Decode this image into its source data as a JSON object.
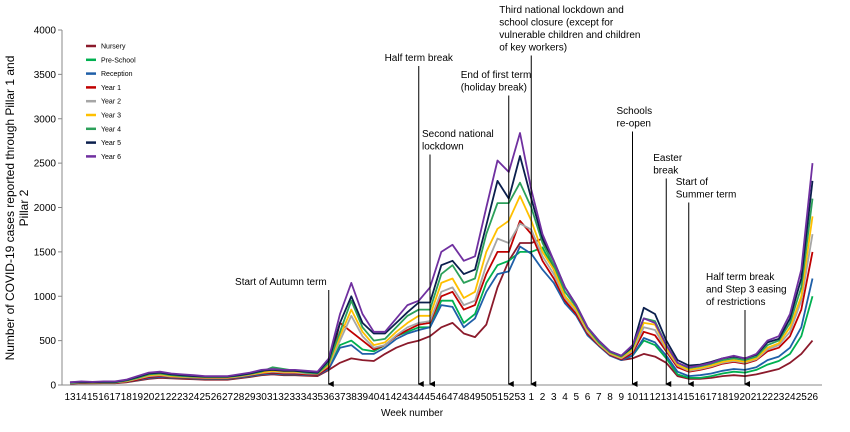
{
  "chart_data": {
    "type": "line",
    "ylabel": [
      "Number of COVID-19 cases reported  through Pillar 1 and",
      "Pillar 2"
    ],
    "xlabel": "Week number",
    "categories": [
      "13",
      "14",
      "15",
      "16",
      "17",
      "18",
      "19",
      "20",
      "21",
      "22",
      "23",
      "24",
      "25",
      "26",
      "27",
      "28",
      "29",
      "30",
      "31",
      "32",
      "33",
      "34",
      "35",
      "36",
      "37",
      "38",
      "39",
      "40",
      "41",
      "42",
      "43",
      "44",
      "45",
      "46",
      "47",
      "48",
      "49",
      "50",
      "51",
      "52",
      "53",
      "1",
      "2",
      "3",
      "4",
      "5",
      "6",
      "7",
      "8",
      "9",
      "10",
      "11",
      "12",
      "13",
      "14",
      "15",
      "16",
      "17",
      "18",
      "19",
      "20",
      "21",
      "22",
      "23",
      "24",
      "25",
      "26"
    ],
    "ylim": [
      0,
      4000
    ],
    "yticks": [
      0,
      500,
      1000,
      1500,
      2000,
      2500,
      3000,
      3500,
      4000
    ],
    "series": [
      {
        "name": "Nursery",
        "color": "#8b1a2b",
        "values": [
          15,
          20,
          18,
          20,
          20,
          30,
          50,
          70,
          80,
          75,
          70,
          65,
          60,
          60,
          60,
          75,
          90,
          110,
          120,
          110,
          110,
          105,
          100,
          170,
          250,
          300,
          280,
          270,
          350,
          420,
          470,
          500,
          550,
          650,
          700,
          580,
          540,
          680,
          1100,
          1400,
          1600,
          1600,
          1650,
          1300,
          1000,
          850,
          600,
          450,
          340,
          280,
          300,
          350,
          320,
          250,
          100,
          70,
          70,
          80,
          100,
          110,
          100,
          120,
          150,
          180,
          250,
          350,
          500
        ]
      },
      {
        "name": "Pre-School",
        "color": "#00b050",
        "values": [
          20,
          25,
          22,
          25,
          25,
          35,
          55,
          80,
          90,
          85,
          80,
          75,
          70,
          70,
          70,
          85,
          100,
          120,
          130,
          120,
          120,
          115,
          110,
          200,
          450,
          500,
          400,
          380,
          450,
          550,
          600,
          650,
          650,
          950,
          950,
          700,
          800,
          1150,
          1350,
          1400,
          1500,
          1500,
          1550,
          1300,
          1000,
          850,
          620,
          470,
          350,
          300,
          330,
          500,
          450,
          300,
          120,
          80,
          80,
          100,
          130,
          150,
          140,
          170,
          230,
          270,
          350,
          550,
          1000
        ]
      },
      {
        "name": "Reception",
        "color": "#1f5fa8",
        "values": [
          20,
          25,
          22,
          25,
          25,
          35,
          55,
          80,
          90,
          85,
          80,
          75,
          70,
          70,
          70,
          85,
          100,
          120,
          130,
          120,
          120,
          115,
          110,
          180,
          420,
          450,
          350,
          350,
          420,
          520,
          580,
          620,
          650,
          900,
          880,
          650,
          750,
          1050,
          1250,
          1280,
          1560,
          1480,
          1300,
          1150,
          920,
          780,
          560,
          440,
          330,
          280,
          330,
          530,
          480,
          330,
          150,
          100,
          110,
          130,
          160,
          180,
          170,
          200,
          280,
          320,
          420,
          650,
          1200
        ]
      },
      {
        "name": "Year 1",
        "color": "#c00000",
        "values": [
          20,
          25,
          22,
          25,
          25,
          35,
          60,
          90,
          100,
          90,
          85,
          80,
          75,
          75,
          75,
          90,
          110,
          130,
          140,
          130,
          130,
          120,
          115,
          200,
          700,
          600,
          500,
          400,
          450,
          550,
          620,
          680,
          700,
          1000,
          1050,
          850,
          900,
          1250,
          1500,
          1500,
          1850,
          1700,
          1400,
          1200,
          950,
          800,
          580,
          450,
          340,
          290,
          360,
          600,
          560,
          380,
          200,
          150,
          170,
          200,
          240,
          260,
          240,
          280,
          380,
          420,
          550,
          850,
          1500
        ]
      },
      {
        "name": "Year 2",
        "color": "#a6a6a6",
        "values": [
          20,
          28,
          25,
          28,
          28,
          40,
          70,
          100,
          110,
          95,
          90,
          85,
          80,
          80,
          80,
          95,
          115,
          135,
          150,
          140,
          140,
          130,
          125,
          220,
          500,
          780,
          550,
          420,
          450,
          560,
          650,
          700,
          720,
          1050,
          1100,
          900,
          950,
          1350,
          1650,
          1600,
          1820,
          1750,
          1450,
          1250,
          980,
          830,
          600,
          460,
          350,
          300,
          380,
          650,
          620,
          400,
          220,
          160,
          180,
          210,
          250,
          270,
          250,
          290,
          400,
          450,
          600,
          950,
          1700
        ]
      },
      {
        "name": "Year 3",
        "color": "#ffc000",
        "values": [
          25,
          30,
          25,
          30,
          30,
          45,
          75,
          110,
          120,
          100,
          95,
          90,
          85,
          85,
          85,
          100,
          120,
          140,
          160,
          150,
          150,
          140,
          130,
          230,
          550,
          850,
          600,
          450,
          480,
          600,
          700,
          780,
          780,
          1150,
          1200,
          980,
          1050,
          1500,
          1760,
          1850,
          2130,
          1850,
          1500,
          1300,
          1000,
          850,
          620,
          470,
          360,
          310,
          400,
          700,
          680,
          420,
          230,
          170,
          190,
          220,
          260,
          280,
          260,
          300,
          420,
          470,
          650,
          1000,
          1900
        ]
      },
      {
        "name": "Year 4",
        "color": "#2ca05a",
        "values": [
          25,
          30,
          28,
          30,
          30,
          50,
          80,
          120,
          130,
          110,
          100,
          95,
          90,
          90,
          90,
          105,
          125,
          150,
          200,
          180,
          160,
          140,
          130,
          250,
          600,
          950,
          650,
          500,
          520,
          650,
          780,
          850,
          850,
          1250,
          1350,
          1150,
          1200,
          1700,
          2050,
          2050,
          2280,
          2000,
          1600,
          1350,
          1050,
          880,
          640,
          480,
          370,
          320,
          420,
          750,
          720,
          450,
          250,
          190,
          210,
          240,
          280,
          300,
          280,
          320,
          450,
          500,
          700,
          1100,
          2100
        ]
      },
      {
        "name": "Year 5",
        "color": "#0b1f4d",
        "values": [
          30,
          35,
          30,
          35,
          35,
          55,
          90,
          130,
          140,
          120,
          110,
          100,
          95,
          95,
          95,
          110,
          130,
          160,
          170,
          160,
          160,
          150,
          140,
          280,
          700,
          1000,
          700,
          580,
          580,
          700,
          820,
          930,
          930,
          1350,
          1400,
          1250,
          1300,
          1800,
          2300,
          2100,
          2580,
          2100,
          1650,
          1400,
          1100,
          900,
          650,
          500,
          380,
          330,
          430,
          870,
          800,
          500,
          280,
          220,
          230,
          260,
          300,
          320,
          300,
          340,
          480,
          520,
          750,
          1200,
          2300
        ]
      },
      {
        "name": "Year 6",
        "color": "#7030a0",
        "values": [
          30,
          40,
          35,
          40,
          40,
          60,
          100,
          140,
          150,
          130,
          120,
          110,
          100,
          100,
          100,
          120,
          140,
          170,
          180,
          170,
          170,
          160,
          150,
          300,
          800,
          1150,
          800,
          600,
          600,
          750,
          900,
          950,
          1100,
          1500,
          1580,
          1400,
          1450,
          2000,
          2530,
          2400,
          2840,
          2200,
          1700,
          1400,
          1100,
          900,
          650,
          500,
          380,
          330,
          450,
          750,
          700,
          450,
          250,
          200,
          220,
          250,
          300,
          330,
          300,
          350,
          500,
          550,
          800,
          1300,
          2500
        ]
      }
    ],
    "annotations": [
      {
        "lines": [
          "Start of Autumn term"
        ],
        "x": 23
      },
      {
        "lines": [
          "Half term break"
        ],
        "x": 31
      },
      {
        "lines": [
          "Second national",
          "lockdown"
        ],
        "x": 32
      },
      {
        "lines": [
          "End of first term",
          "(holiday break)"
        ],
        "x": 39
      },
      {
        "lines": [
          "Third national lockdown and",
          "school closure (except for",
          "vulnerable children and children",
          "of key workers)"
        ],
        "x": 41
      },
      {
        "lines": [
          "Schools",
          "re-open"
        ],
        "x": 50
      },
      {
        "lines": [
          "Easter",
          "break"
        ],
        "x": 53
      },
      {
        "lines": [
          "Start of",
          "Summer term"
        ],
        "x": 55
      },
      {
        "lines": [
          "Half term break",
          "and Step 3 easing",
          "of restrictions"
        ],
        "x": 60
      }
    ]
  }
}
